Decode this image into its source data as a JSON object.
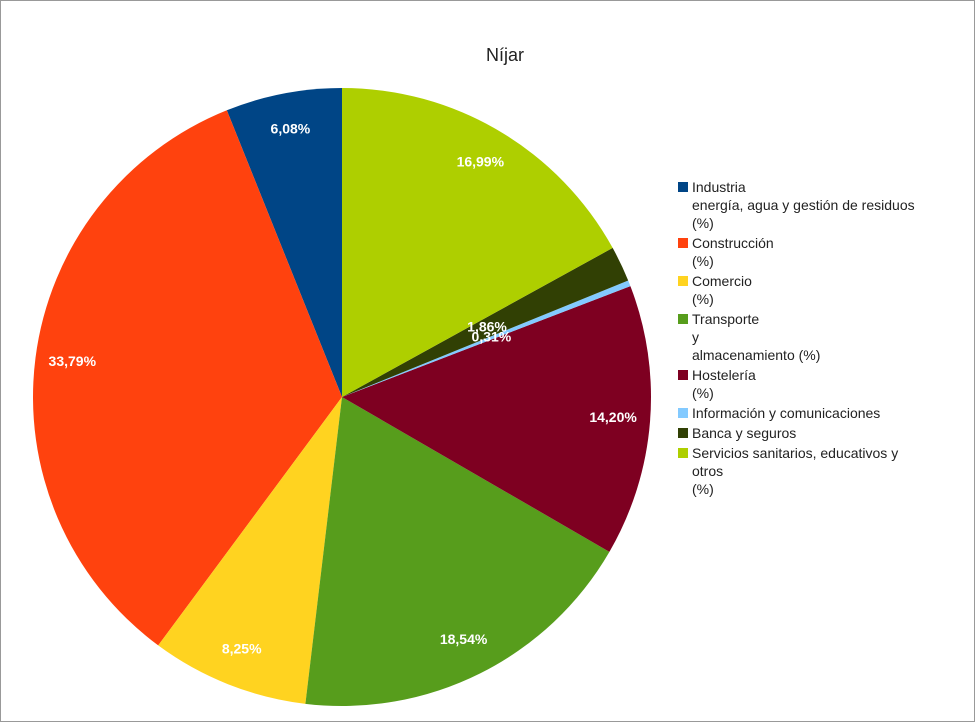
{
  "chart_data": {
    "type": "pie",
    "title": "Níjar",
    "series": [
      {
        "name": "Industria\nenergía, agua y gestión de residuos\n(%)",
        "color": "#004586",
        "values": [
          6.08
        ],
        "value_labels": [
          "6,08%"
        ]
      },
      {
        "name": "Construcción\n(%)",
        "color": "#ff420e",
        "values": [
          33.79
        ],
        "value_labels": [
          "33,79%"
        ]
      },
      {
        "name": "Comercio\n(%)",
        "color": "#ffd320",
        "values": [
          8.25
        ],
        "value_labels": [
          "8,25%"
        ]
      },
      {
        "name": "Transporte\ny\nalmacenamiento (%)",
        "color": "#579d1c",
        "values": [
          18.54
        ],
        "value_labels": [
          "18,54%"
        ]
      },
      {
        "name": "Hostelería\n(%)",
        "color": "#7e0021",
        "values": [
          14.2
        ],
        "value_labels": [
          "14,20%"
        ]
      },
      {
        "name": "Información y comunicaciones",
        "color": "#83caff",
        "values": [
          0.31
        ],
        "value_labels": [
          "0,31%"
        ]
      },
      {
        "name": "Banca y seguros",
        "color": "#314004",
        "values": [
          1.86
        ],
        "value_labels": [
          "1,86%"
        ]
      },
      {
        "name": "Servicios sanitarios, educativos y\notros\n(%)",
        "color": "#aecf00",
        "values": [
          16.99
        ],
        "value_labels": [
          "16,99%"
        ]
      }
    ],
    "legend": "right"
  }
}
